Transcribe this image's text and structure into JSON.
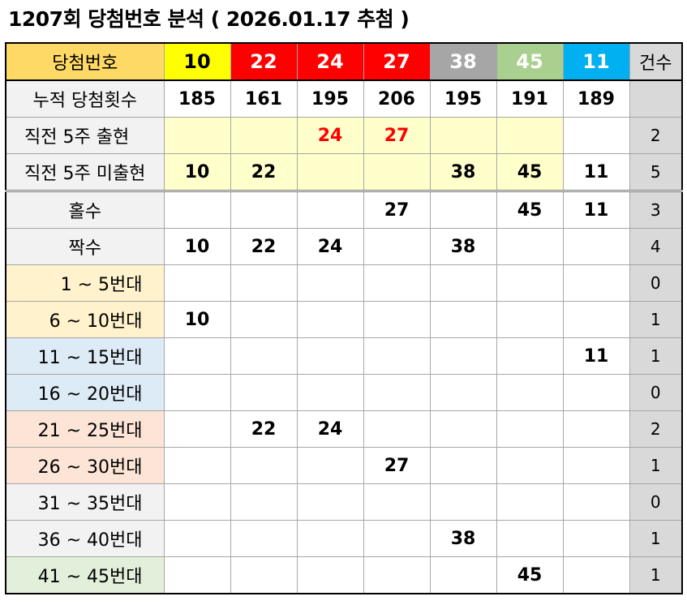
{
  "title": "1207회 당첨번호 분석 ( 2026.01.17 추첨 )",
  "header": {
    "label": "당첨번호",
    "numbers": [
      "10",
      "22",
      "24",
      "27",
      "38",
      "45",
      "11"
    ],
    "count_label": "건수"
  },
  "colors": {
    "label_bg": "#ffd966",
    "ball_bgs": [
      "#ffff00",
      "#ff0000",
      "#ff0000",
      "#ff0000",
      "#a6a6a6",
      "#a9d08e",
      "#00b0f0"
    ],
    "ball_fgs": [
      "#000000",
      "#ffffff",
      "#ffffff",
      "#ffffff",
      "#ffffff",
      "#ffffff",
      "#ffffff"
    ],
    "count_bg": "#d9d9d9",
    "gray_label": "#f2f2f2",
    "yellow_light": "#fff2cc",
    "yellow_cell": "#ffffcc",
    "blue_light": "#ddebf7",
    "orange_light": "#fce4d6",
    "green_light": "#e2efda"
  },
  "rows": [
    {
      "label": "누적 당첨횟수",
      "cells": [
        "185",
        "161",
        "195",
        "206",
        "195",
        "191",
        "189"
      ],
      "count": ""
    },
    {
      "label": "직전 5주 출현",
      "cells": [
        "",
        "",
        "24",
        "27",
        "",
        "",
        ""
      ],
      "count": "2"
    },
    {
      "label": "직전 5주 미출현",
      "cells": [
        "10",
        "22",
        "",
        "",
        "38",
        "45",
        "11"
      ],
      "count": "5"
    },
    {
      "label": "홀수",
      "cells": [
        "",
        "",
        "",
        "27",
        "",
        "45",
        "11"
      ],
      "count": "3"
    },
    {
      "label": "짝수",
      "cells": [
        "10",
        "22",
        "24",
        "",
        "38",
        "",
        ""
      ],
      "count": "4"
    },
    {
      "label": "1 ~ 5번대",
      "cells": [
        "",
        "",
        "",
        "",
        "",
        "",
        ""
      ],
      "count": "0"
    },
    {
      "label": "6 ~ 10번대",
      "cells": [
        "10",
        "",
        "",
        "",
        "",
        "",
        ""
      ],
      "count": "1"
    },
    {
      "label": "11 ~ 15번대",
      "cells": [
        "",
        "",
        "",
        "",
        "",
        "",
        "11"
      ],
      "count": "1"
    },
    {
      "label": "16 ~ 20번대",
      "cells": [
        "",
        "",
        "",
        "",
        "",
        "",
        ""
      ],
      "count": "0"
    },
    {
      "label": "21 ~ 25번대",
      "cells": [
        "",
        "22",
        "24",
        "",
        "",
        "",
        ""
      ],
      "count": "2"
    },
    {
      "label": "26 ~ 30번대",
      "cells": [
        "",
        "",
        "",
        "27",
        "",
        "",
        ""
      ],
      "count": "1"
    },
    {
      "label": "31 ~ 35번대",
      "cells": [
        "",
        "",
        "",
        "",
        "",
        "",
        ""
      ],
      "count": "0"
    },
    {
      "label": "36 ~ 40번대",
      "cells": [
        "",
        "",
        "",
        "",
        "38",
        "",
        ""
      ],
      "count": "1"
    },
    {
      "label": "41 ~ 45번대",
      "cells": [
        "",
        "",
        "",
        "",
        "",
        "45",
        ""
      ],
      "count": "1"
    }
  ]
}
